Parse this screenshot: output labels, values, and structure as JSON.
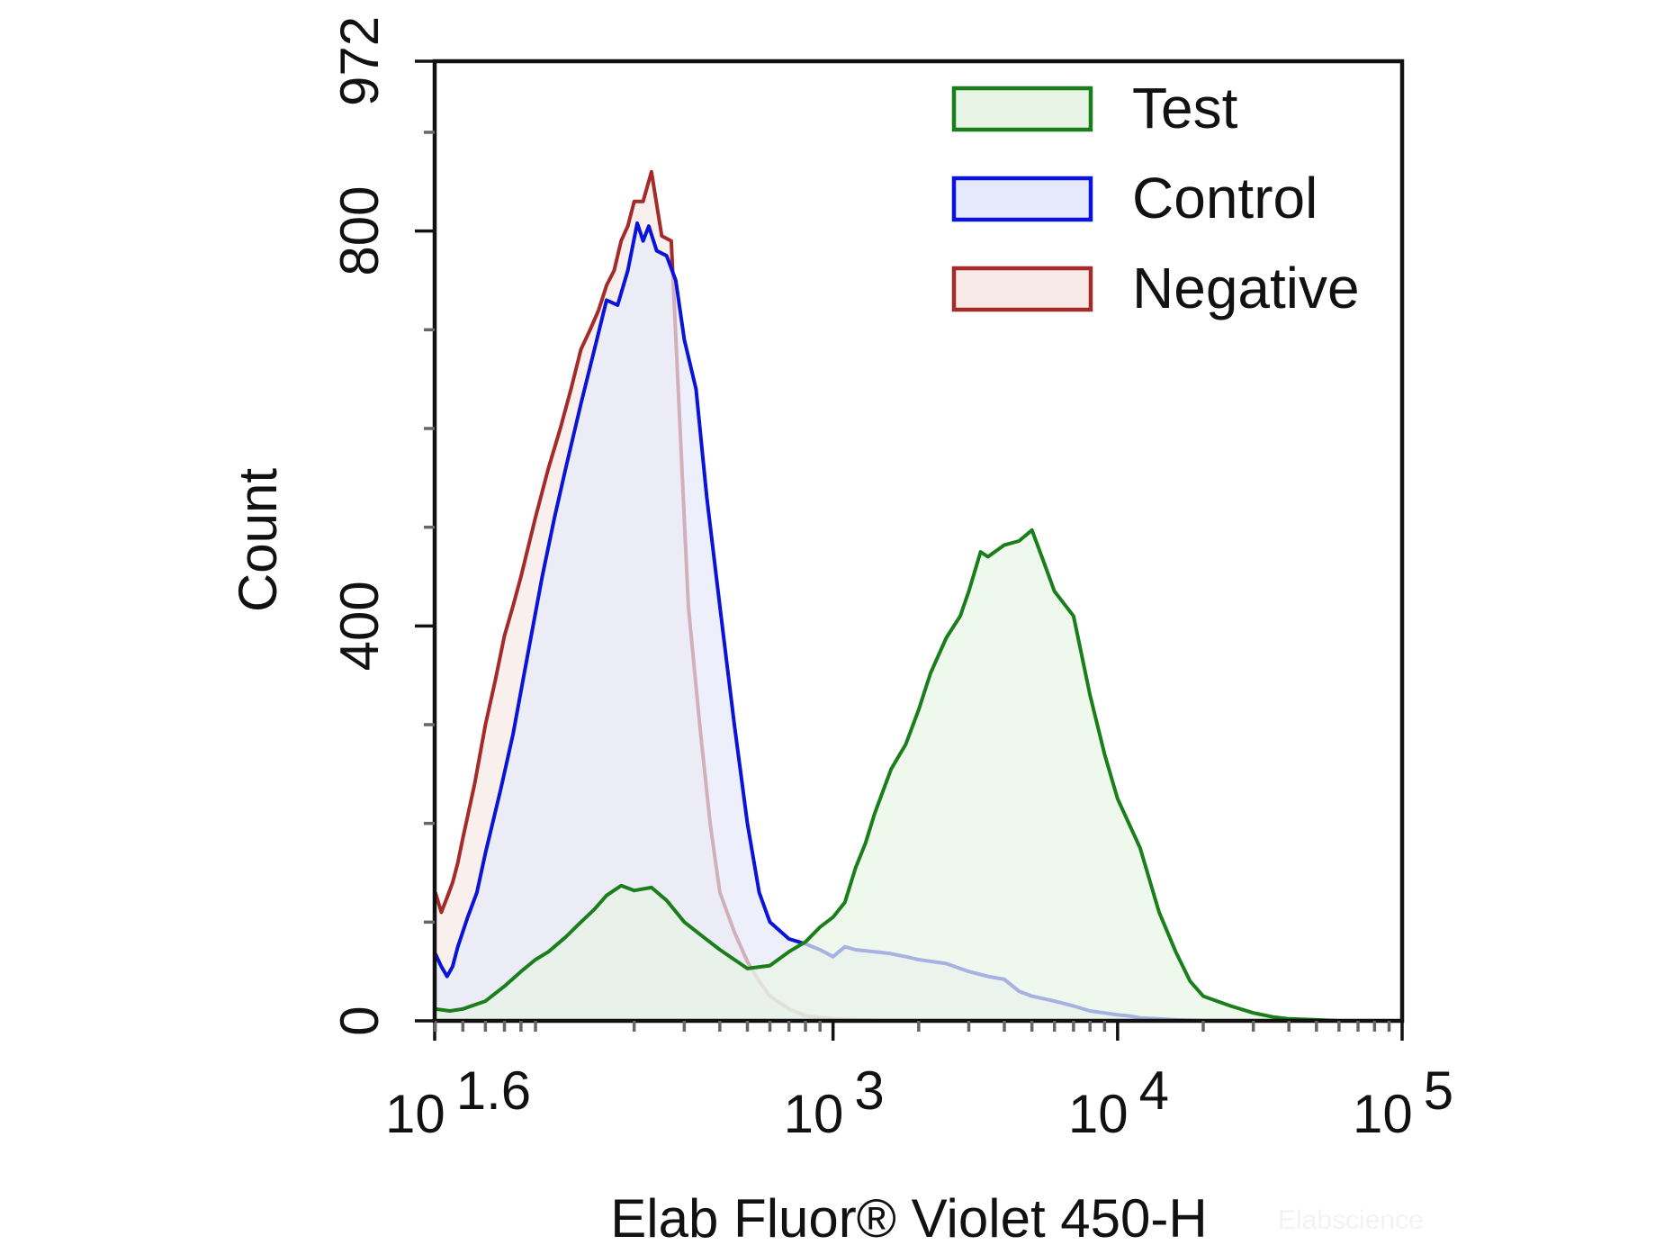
{
  "chart_data": {
    "type": "area",
    "title": "",
    "xlabel": "Elab Fluor® Violet 450-H",
    "ylabel": "Count",
    "x_scale": "log10",
    "xlim": [
      39.8,
      100000
    ],
    "ylim": [
      0,
      972
    ],
    "x_ticks": [
      {
        "value": 39.8,
        "base": "10",
        "exp": "1.6"
      },
      {
        "value": 1000,
        "base": "10",
        "exp": "3"
      },
      {
        "value": 10000,
        "base": "10",
        "exp": "4"
      },
      {
        "value": 100000,
        "base": "10",
        "exp": "5"
      }
    ],
    "y_ticks": [
      {
        "value": 0,
        "label": "0"
      },
      {
        "value": 400,
        "label": "400"
      },
      {
        "value": 800,
        "label": "800"
      },
      {
        "value": 972,
        "label": "972"
      }
    ],
    "legend_position": "top-right",
    "watermark": "Elabscience",
    "series": [
      {
        "name": "Test",
        "stroke": "#1a7f1a",
        "fill": "#e8f5e6",
        "x": [
          40,
          45,
          50,
          60,
          70,
          80,
          90,
          100,
          115,
          130,
          145,
          160,
          180,
          200,
          230,
          260,
          300,
          350,
          400,
          450,
          500,
          600,
          700,
          800,
          900,
          1000,
          1100,
          1200,
          1300,
          1400,
          1600,
          1800,
          2000,
          2200,
          2500,
          2800,
          3000,
          3300,
          3500,
          4000,
          4500,
          5000,
          5500,
          6000,
          7000,
          8000,
          9000,
          10000,
          12000,
          14000,
          16000,
          18000,
          20000,
          25000,
          30000,
          35000,
          40000,
          50000,
          60000,
          80000,
          100000
        ],
        "y": [
          12,
          10,
          12,
          20,
          35,
          50,
          62,
          70,
          85,
          100,
          113,
          127,
          137,
          132,
          135,
          122,
          100,
          85,
          72,
          62,
          53,
          56,
          70,
          80,
          95,
          105,
          120,
          155,
          180,
          210,
          255,
          280,
          315,
          352,
          388,
          410,
          435,
          475,
          470,
          482,
          486,
          497,
          465,
          435,
          410,
          330,
          270,
          225,
          175,
          110,
          70,
          40,
          25,
          15,
          8,
          4,
          2,
          1,
          0,
          0,
          0
        ]
      },
      {
        "name": "Control",
        "stroke": "#0a14d8",
        "fill": "#e6e9fa",
        "x": [
          40,
          42,
          44,
          46,
          48,
          52,
          56,
          60,
          68,
          75,
          85,
          95,
          105,
          115,
          130,
          145,
          160,
          175,
          190,
          205,
          215,
          225,
          240,
          260,
          280,
          300,
          330,
          360,
          400,
          450,
          500,
          550,
          600,
          700,
          800,
          900,
          1000,
          1100,
          1200,
          1400,
          1600,
          1800,
          2000,
          2500,
          3000,
          3500,
          4000,
          4500,
          5000,
          6000,
          7000,
          8000,
          9000,
          10000,
          11000,
          12000,
          14000,
          16000,
          20000,
          30000,
          100000
        ],
        "y": [
          68,
          55,
          45,
          55,
          75,
          105,
          130,
          170,
          235,
          290,
          375,
          450,
          510,
          560,
          625,
          680,
          730,
          725,
          760,
          808,
          790,
          805,
          780,
          775,
          750,
          690,
          640,
          530,
          420,
          300,
          200,
          130,
          100,
          83,
          78,
          72,
          65,
          75,
          72,
          70,
          68,
          65,
          62,
          58,
          50,
          45,
          42,
          30,
          25,
          20,
          15,
          10,
          8,
          6,
          5,
          3,
          2,
          1,
          0,
          0,
          0
        ]
      },
      {
        "name": "Negative",
        "stroke": "#a52a2a",
        "fill": "#f6e9e6",
        "x": [
          40,
          41,
          42,
          44,
          46,
          48,
          50,
          55,
          60,
          65,
          70,
          75,
          80,
          90,
          100,
          110,
          120,
          130,
          140,
          150,
          160,
          170,
          180,
          190,
          200,
          215,
          230,
          250,
          270,
          290,
          310,
          340,
          370,
          400,
          450,
          500,
          550,
          600,
          700,
          800,
          1000,
          1200,
          1500,
          2000,
          100000
        ],
        "y": [
          130,
          120,
          110,
          125,
          140,
          160,
          185,
          240,
          300,
          345,
          390,
          420,
          450,
          510,
          560,
          600,
          640,
          680,
          700,
          720,
          745,
          760,
          790,
          805,
          830,
          830,
          860,
          795,
          790,
          600,
          420,
          300,
          200,
          130,
          90,
          60,
          40,
          25,
          12,
          5,
          2,
          1,
          0,
          0,
          0
        ]
      }
    ]
  }
}
